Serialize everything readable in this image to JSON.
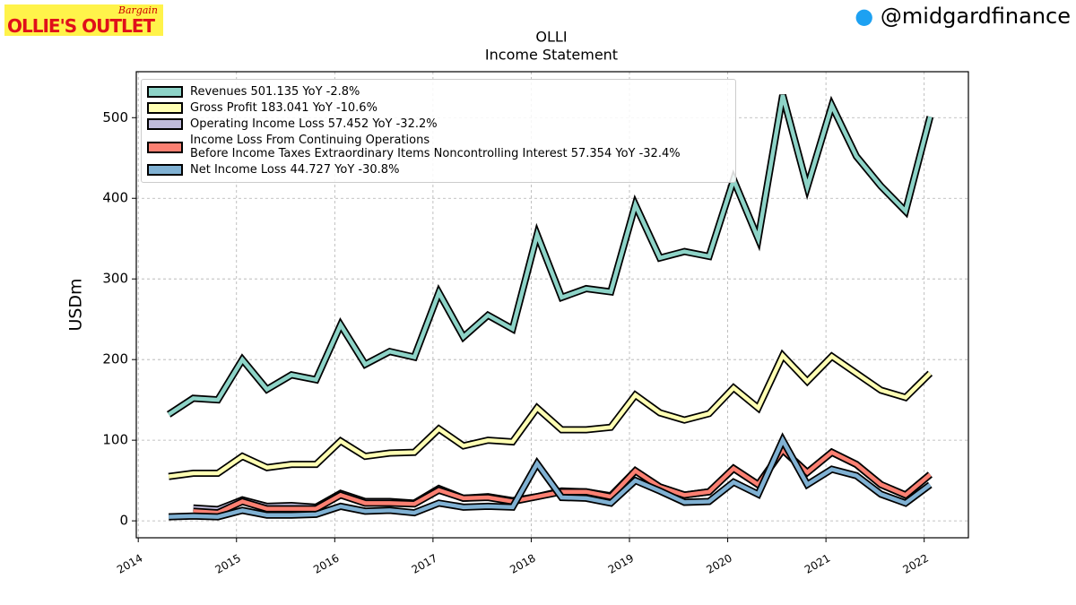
{
  "header": {
    "logo_top": "Bargain",
    "logo_main": "OLLIE'S OUTLET",
    "handle": "@midgardfinance"
  },
  "chart_data": {
    "type": "line",
    "title": "OLLI",
    "subtitle": "Income Statement",
    "y_label": "USDm",
    "x": [
      2014.31,
      2014.56,
      2014.81,
      2015.06,
      2015.31,
      2015.56,
      2015.81,
      2016.06,
      2016.31,
      2016.56,
      2016.81,
      2017.06,
      2017.31,
      2017.56,
      2017.81,
      2018.06,
      2018.31,
      2018.56,
      2018.81,
      2019.06,
      2019.31,
      2019.56,
      2019.81,
      2020.06,
      2020.31,
      2020.56,
      2020.81,
      2021.06,
      2021.31,
      2021.56,
      2021.81,
      2022.06
    ],
    "series": [
      {
        "name": "Revenues 501.135 YoY -2.8%",
        "color": "#8dd3c7",
        "values": [
          132,
          152,
          150,
          200,
          163,
          181,
          175,
          243,
          194,
          210,
          203,
          283,
          228,
          255,
          238,
          355,
          277,
          288,
          284,
          392,
          326,
          334,
          328,
          423,
          350,
          528,
          414,
          515,
          452,
          415,
          384,
          501.135
        ]
      },
      {
        "name": "Gross Profit 183.041 YoY -10.6%",
        "color": "#ffffb3",
        "values": [
          55,
          59,
          59,
          80,
          66,
          70,
          70,
          99,
          80,
          84,
          85,
          114,
          93,
          100,
          98,
          140,
          113,
          113,
          116,
          156,
          134,
          125,
          133,
          165,
          140,
          205,
          173,
          204,
          183,
          162,
          153,
          183.041
        ]
      },
      {
        "name": "Operating Income Loss 57.452 YoY -32.2%",
        "color": "#bebada",
        "values": [
          null,
          16,
          14,
          26,
          18,
          19,
          17,
          34,
          24,
          24,
          22,
          40,
          28,
          30,
          25,
          30,
          37,
          36,
          31,
          62,
          42,
          32,
          36,
          65,
          45,
          88,
          60,
          85,
          70,
          45,
          32,
          57.452
        ]
      },
      {
        "name": "Income Loss From Continuing Operations\nBefore Income Taxes Extraordinary Items Noncontrolling Interest 57.354 YoY -32.4%",
        "color": "#fb8072",
        "values": [
          null,
          12,
          10,
          24,
          15,
          15,
          15,
          32,
          22,
          22,
          21,
          38,
          28,
          29,
          24,
          30,
          36,
          36,
          30,
          62,
          42,
          32,
          36,
          65,
          45,
          88,
          60,
          85,
          70,
          45,
          32,
          57.354
        ]
      },
      {
        "name": "Net Income Loss 44.727 YoY -30.8%",
        "color": "#80b1d3",
        "values": [
          5,
          6,
          5,
          13,
          7,
          7,
          8,
          18,
          12,
          13,
          10,
          22,
          17,
          18,
          17,
          71,
          29,
          28,
          22,
          50,
          37,
          23,
          24,
          48,
          33,
          100,
          45,
          64,
          56,
          33,
          22,
          44.727
        ]
      }
    ],
    "xlim": [
      2013.98,
      2022.45
    ],
    "xticks": [
      2014,
      2015,
      2016,
      2017,
      2018,
      2019,
      2020,
      2021,
      2022
    ],
    "ylim": [
      -21,
      557
    ],
    "yticks": [
      0,
      100,
      200,
      300,
      400,
      500
    ],
    "grid": true,
    "legend": "upper left"
  }
}
